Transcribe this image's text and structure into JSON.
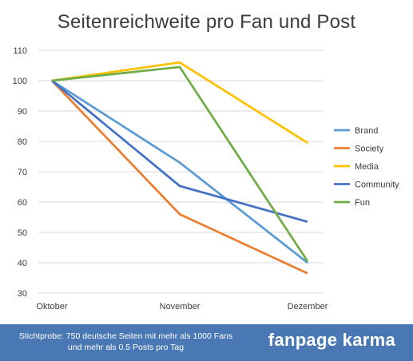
{
  "chart_data": {
    "type": "line",
    "title": "Seitenreichweite pro Fan und Post",
    "xlabel": "",
    "ylabel": "",
    "categories": [
      "Oktober",
      "November",
      "Dezember"
    ],
    "ylim": [
      30,
      110
    ],
    "yticks": [
      30,
      40,
      50,
      60,
      70,
      80,
      90,
      100,
      110
    ],
    "grid": true,
    "legend_position": "right",
    "series": [
      {
        "name": "Brand",
        "color": "#5b9bd5",
        "values": [
          100,
          73,
          40
        ]
      },
      {
        "name": "Society",
        "color": "#ed7d31",
        "values": [
          100,
          56,
          36.5
        ]
      },
      {
        "name": "Media",
        "color": "#ffc000",
        "values": [
          100,
          106,
          79.5
        ]
      },
      {
        "name": "Community",
        "color": "#4472c4",
        "values": [
          100,
          65.3,
          53.5
        ]
      },
      {
        "name": "Fun",
        "color": "#70ad47",
        "values": [
          100,
          104.5,
          40.5
        ]
      }
    ]
  },
  "footer": {
    "note": "Stichtprobe: 750 deutsche Seiten mit mehr als 1000 Fans und mehr als 0.5 Posts pro Tag",
    "brand": "fanpage karma",
    "background_color": "#4a78b5"
  }
}
